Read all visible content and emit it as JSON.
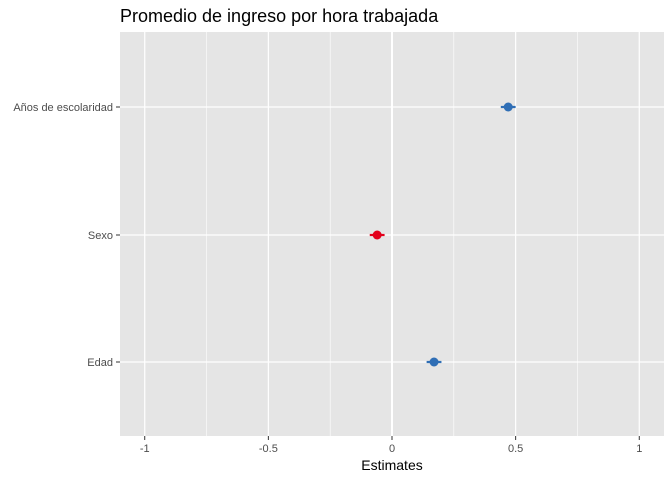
{
  "chart_data": {
    "type": "scatter",
    "title": "Promedio de ingreso por hora trabajada",
    "xlabel": "Estimates",
    "ylabel": "",
    "xlim": [
      -1.1,
      1.1
    ],
    "x_ticks": [
      -1,
      -0.5,
      0,
      0.5,
      1
    ],
    "x_tick_labels": [
      "-1",
      "-0.5",
      "0",
      "0.5",
      "1"
    ],
    "grid": true,
    "legend": "none",
    "categories": [
      "Años de escolaridad",
      "Sexo",
      "Edad"
    ],
    "estimates": [
      0.47,
      -0.06,
      0.17
    ],
    "ci_low": [
      0.44,
      -0.09,
      0.14
    ],
    "ci_high": [
      0.5,
      -0.03,
      0.2
    ],
    "colors": {
      "positive": "#2f6eb5",
      "negative": "#e3001b",
      "panel": "#e5e5e5",
      "grid": "#ffffff"
    }
  }
}
